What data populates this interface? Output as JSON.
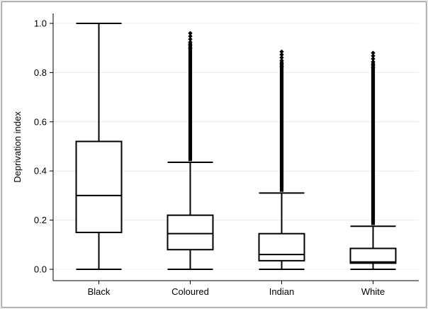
{
  "chart_data": {
    "type": "boxplot",
    "title": "",
    "xlabel": "",
    "ylabel": "Deprivation index",
    "ylim": [
      0,
      1.04
    ],
    "yticks": [
      0.0,
      0.2,
      0.4,
      0.6,
      0.8,
      1.0
    ],
    "ytick_labels": [
      "0.0",
      "0.2",
      "0.4",
      "0.6",
      "0.8",
      "1.0"
    ],
    "grid": "horizontal",
    "categories": [
      "Black",
      "Coloured",
      "Indian",
      "White"
    ],
    "boxes": [
      {
        "category": "Black",
        "whisker_low": 0.0,
        "q1": 0.15,
        "median": 0.3,
        "q3": 0.52,
        "whisker_high": 1.0,
        "outliers_from": null,
        "outliers_to": null
      },
      {
        "category": "Coloured",
        "whisker_low": 0.0,
        "q1": 0.08,
        "median": 0.145,
        "q3": 0.22,
        "whisker_high": 0.435,
        "outliers_from": 0.44,
        "outliers_to": 0.96
      },
      {
        "category": "Indian",
        "whisker_low": 0.0,
        "q1": 0.035,
        "median": 0.06,
        "q3": 0.145,
        "whisker_high": 0.31,
        "outliers_from": 0.315,
        "outliers_to": 0.885
      },
      {
        "category": "White",
        "whisker_low": 0.0,
        "q1": 0.025,
        "median": 0.03,
        "q3": 0.085,
        "whisker_high": 0.175,
        "outliers_from": 0.18,
        "outliers_to": 0.88
      }
    ],
    "colors": {
      "stroke": "#000000",
      "grid": "#ececec",
      "frame": "#8c8c8c",
      "background": "#e6e6e6"
    }
  }
}
